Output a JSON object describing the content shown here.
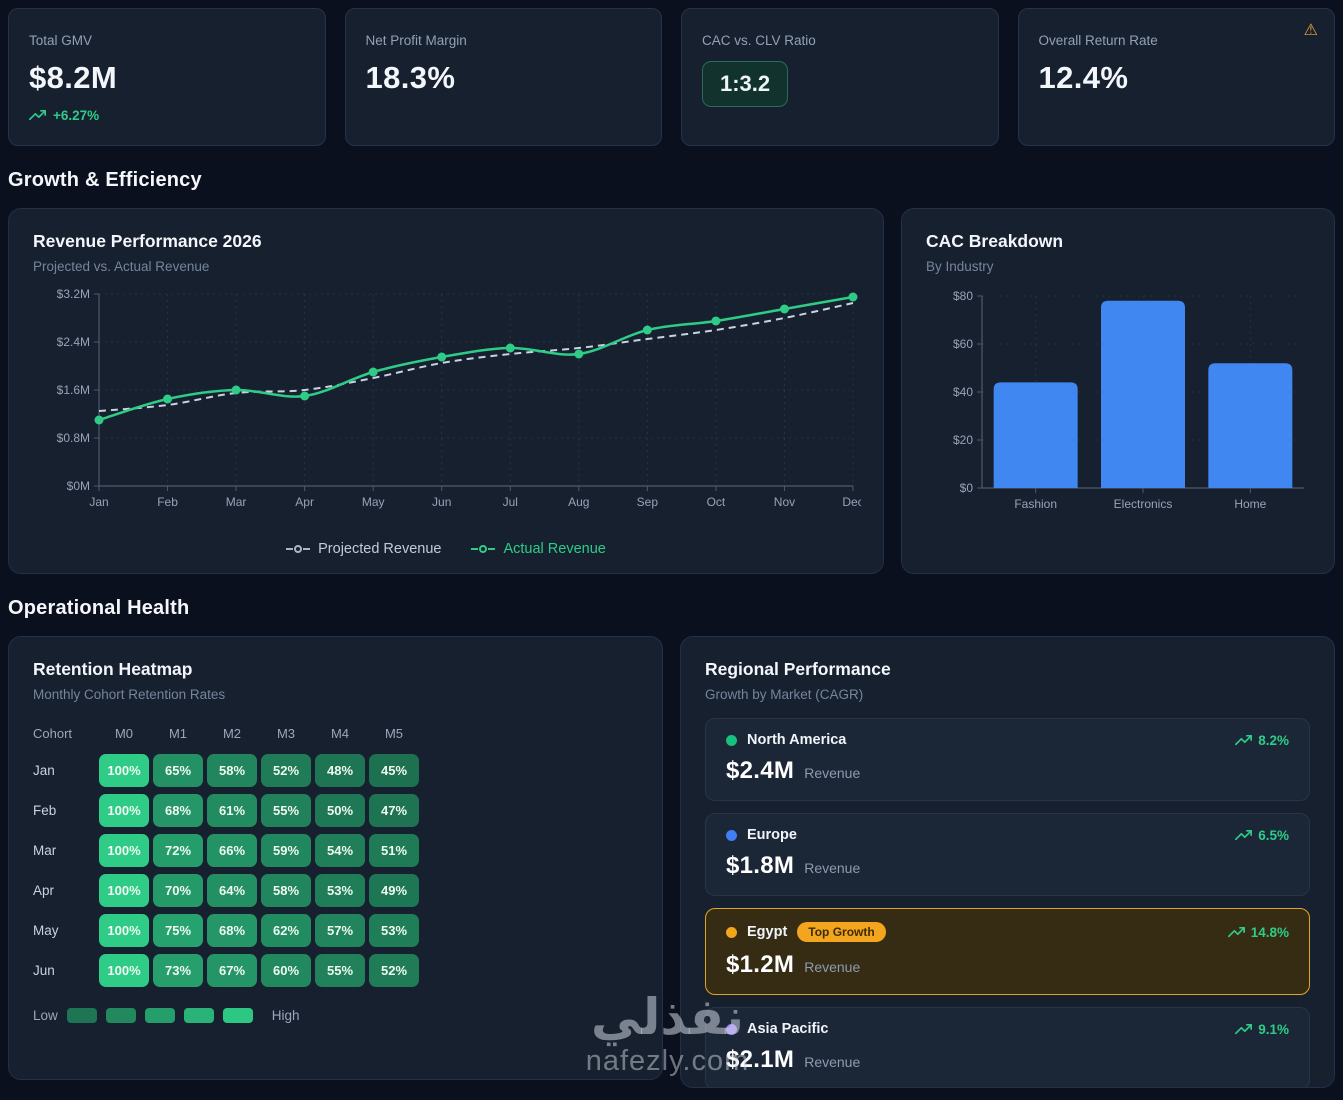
{
  "colors": {
    "page_bg": "#0a101d",
    "card_bg": "#16202f",
    "card_border": "#243349",
    "accent_green": "#2ecc87",
    "bar_blue": "#4187f2",
    "amber": "#f2a51d",
    "axis": "#4d5a70",
    "tick_text": "#97a3b8"
  },
  "kpis": [
    {
      "label": "Total GMV",
      "value": "$8.2M",
      "delta": "+6.27%",
      "icon": "trending-up-icon"
    },
    {
      "label": "Net Profit Margin",
      "value": "18.3%"
    },
    {
      "label": "CAC vs. CLV Ratio",
      "value": "1:3.2"
    },
    {
      "label": "Overall Return Rate",
      "value": "12.4%",
      "icon": "warning-icon"
    }
  ],
  "sections": {
    "growth": "Growth & Efficiency",
    "operational": "Operational Health"
  },
  "chart_data": [
    {
      "id": "revenue_performance",
      "type": "line",
      "title": "Revenue Performance 2026",
      "subtitle": "Projected vs. Actual Revenue",
      "x": [
        "Jan",
        "Feb",
        "Mar",
        "Apr",
        "May",
        "Jun",
        "Jul",
        "Aug",
        "Sep",
        "Oct",
        "Nov",
        "Dec"
      ],
      "series": [
        {
          "name": "Projected Revenue",
          "color": "#c9d3e0",
          "style": "dashed",
          "markers": false,
          "values_musd": [
            1.25,
            1.35,
            1.55,
            1.6,
            1.8,
            2.05,
            2.2,
            2.3,
            2.45,
            2.6,
            2.8,
            3.05
          ]
        },
        {
          "name": "Actual Revenue",
          "color": "#2ecc87",
          "style": "solid",
          "markers": true,
          "values_musd": [
            1.1,
            1.45,
            1.6,
            1.5,
            1.9,
            2.15,
            2.3,
            2.2,
            2.6,
            2.75,
            2.95,
            3.15
          ]
        }
      ],
      "ylim": [
        0,
        3.2
      ],
      "ytick_values": [
        0,
        0.8,
        1.6,
        2.4,
        3.2
      ],
      "ytick_labels": [
        "$0M",
        "$0.8M",
        "$1.6M",
        "$2.4M",
        "$3.2M"
      ],
      "grid": true,
      "legend_position": "bottom"
    },
    {
      "id": "cac_breakdown",
      "type": "bar",
      "title": "CAC Breakdown",
      "subtitle": "By Industry",
      "categories": [
        "Fashion",
        "Electronics",
        "Home"
      ],
      "values_usd": [
        44,
        78,
        52
      ],
      "bar_color": "#4187f2",
      "ylim": [
        0,
        80
      ],
      "ytick_values": [
        0,
        20,
        40,
        60,
        80
      ],
      "ytick_labels": [
        "$0",
        "$20",
        "$40",
        "$60",
        "$80"
      ],
      "grid": true
    },
    {
      "id": "retention_heatmap",
      "type": "heatmap",
      "title": "Retention Heatmap",
      "subtitle": "Monthly Cohort Retention Rates",
      "corner_label": "Cohort",
      "columns": [
        "M0",
        "M1",
        "M2",
        "M3",
        "M4",
        "M5"
      ],
      "rows": [
        {
          "cohort": "Jan",
          "values_pct": [
            100,
            65,
            58,
            52,
            48,
            45
          ]
        },
        {
          "cohort": "Feb",
          "values_pct": [
            100,
            68,
            61,
            55,
            50,
            47
          ]
        },
        {
          "cohort": "Mar",
          "values_pct": [
            100,
            72,
            66,
            59,
            54,
            51
          ]
        },
        {
          "cohort": "Apr",
          "values_pct": [
            100,
            70,
            64,
            58,
            53,
            49
          ]
        },
        {
          "cohort": "May",
          "values_pct": [
            100,
            75,
            68,
            62,
            57,
            53
          ]
        },
        {
          "cohort": "Jun",
          "values_pct": [
            100,
            73,
            67,
            60,
            55,
            52
          ]
        }
      ],
      "scale": {
        "low_label": "Low",
        "high_label": "High",
        "low_color": "#1d7050",
        "high_color": "#2ecc87",
        "domain_pct": [
          45,
          100
        ]
      }
    }
  ],
  "regional": {
    "title": "Regional Performance",
    "subtitle": "Growth by Market (CAGR)",
    "items": [
      {
        "name": "North America",
        "dot_color": "#17c07d",
        "revenue": "$2.4M",
        "revenue_label": "Revenue",
        "growth": "8.2%",
        "top_growth": false
      },
      {
        "name": "Europe",
        "dot_color": "#3f7ef4",
        "revenue": "$1.8M",
        "revenue_label": "Revenue",
        "growth": "6.5%",
        "top_growth": false
      },
      {
        "name": "Egypt",
        "dot_color": "#f2a51d",
        "badge": "Top Growth",
        "revenue": "$1.2M",
        "revenue_label": "Revenue",
        "growth": "14.8%",
        "top_growth": true
      },
      {
        "name": "Asia Pacific",
        "dot_color": "#a78bfa",
        "revenue": "$2.1M",
        "revenue_label": "Revenue",
        "growth": "9.1%",
        "top_growth": false
      }
    ]
  },
  "watermark": {
    "logo": "نفذلي",
    "domain": "nafezly.com"
  }
}
